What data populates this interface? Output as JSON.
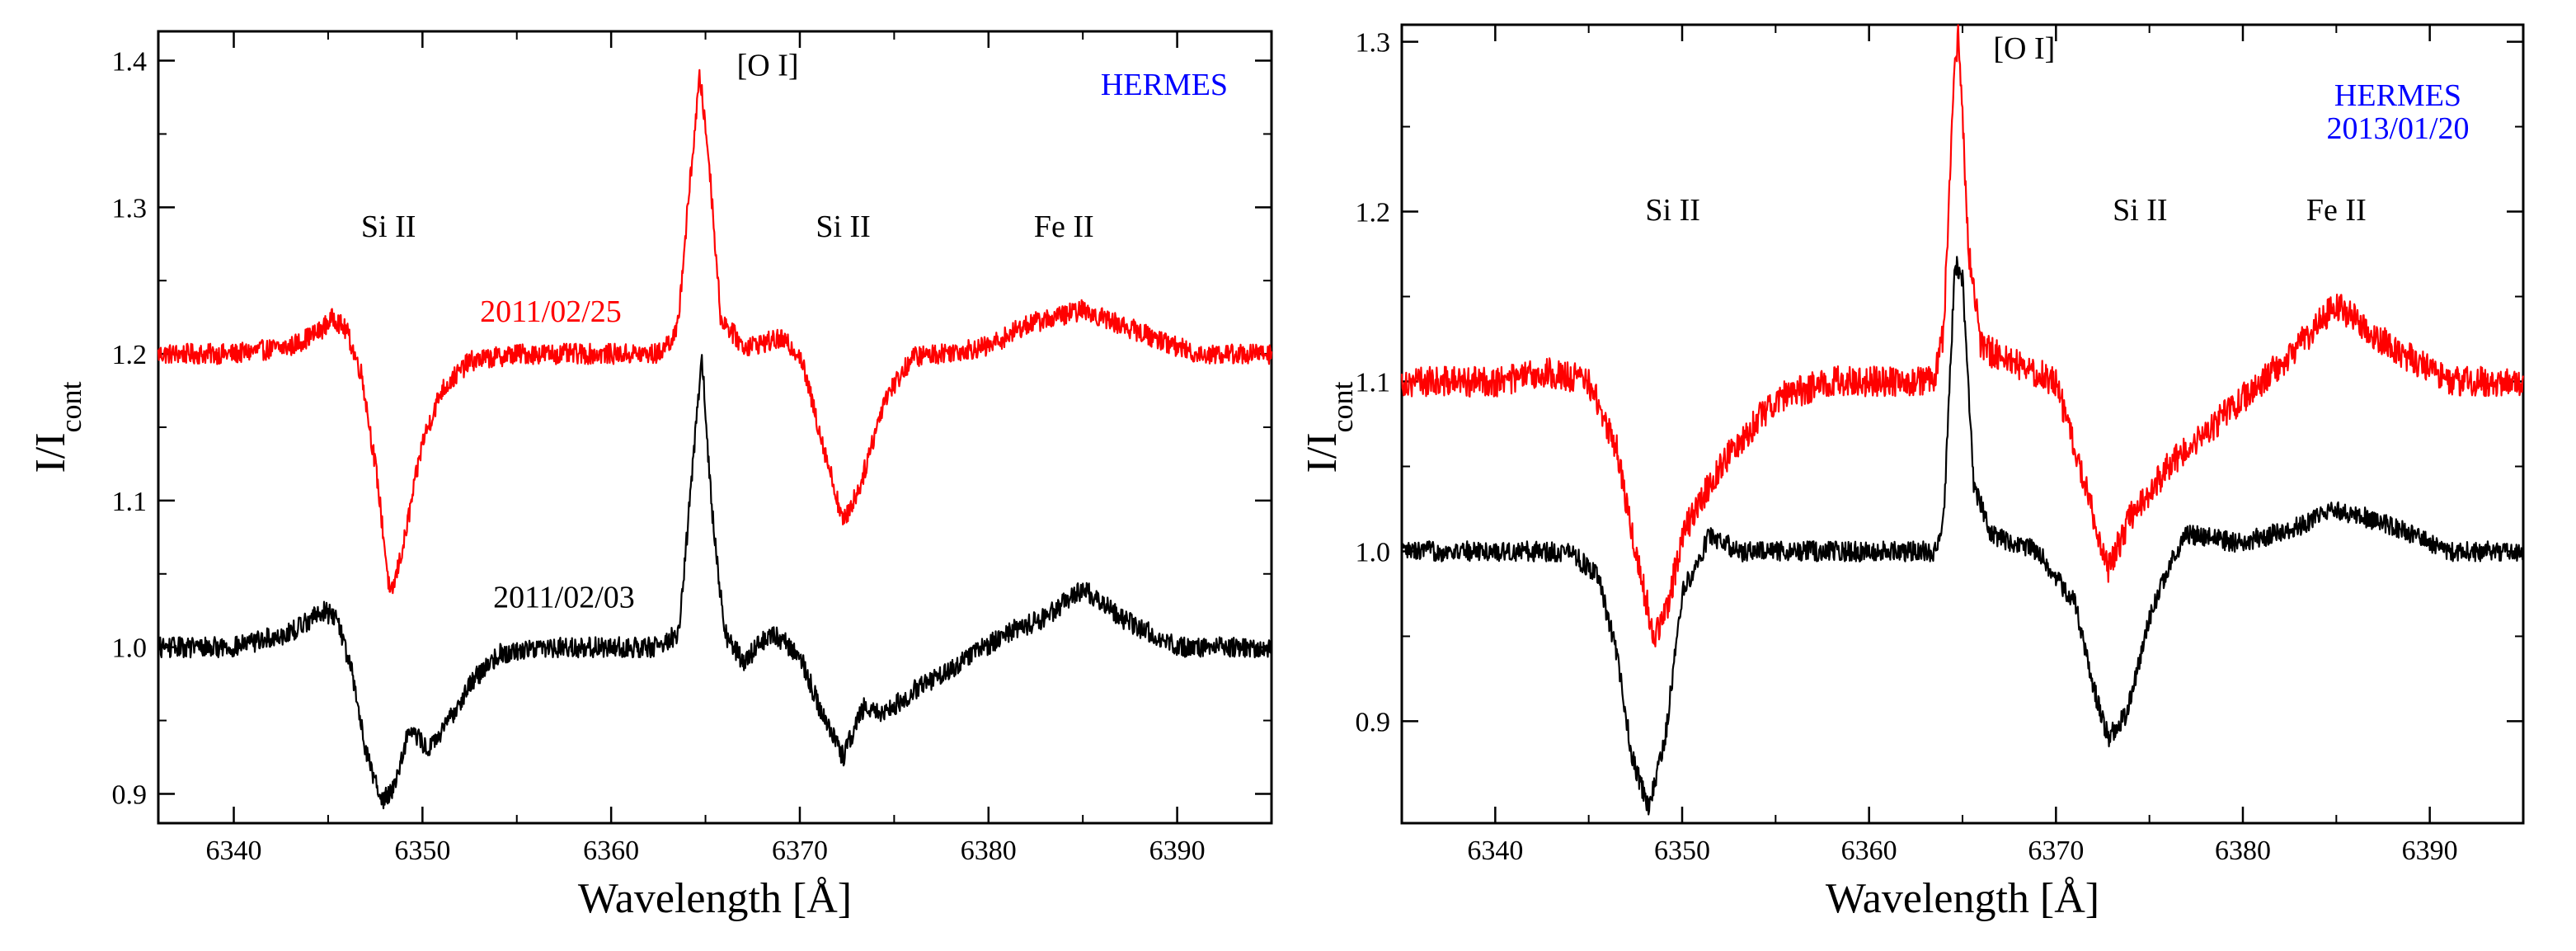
{
  "chart_data": [
    {
      "type": "line",
      "xlabel": "Wavelength [Å]",
      "ylabel": "I/I",
      "ylabel_sub": "cont",
      "xlim": [
        6336,
        6395
      ],
      "ylim": [
        0.88,
        1.42
      ],
      "xticks": [
        6340,
        6350,
        6360,
        6370,
        6380,
        6390
      ],
      "yticks": [
        "0.9",
        "1.0",
        "1.1",
        "1.2",
        "1.3",
        "1.4"
      ],
      "yticks_values": [
        0.9,
        1.0,
        1.1,
        1.2,
        1.3,
        1.4
      ],
      "instrument_label": "HERMES",
      "instrument_color": "#0000ff",
      "annotations": [
        {
          "text": "Si II",
          "x": 6348.2,
          "y": 1.28
        },
        {
          "text": "[O I]",
          "x": 6368.3,
          "y": 1.39
        },
        {
          "text": "Si II",
          "x": 6372.3,
          "y": 1.28
        },
        {
          "text": "Fe II",
          "x": 6384.0,
          "y": 1.28
        }
      ],
      "series": [
        {
          "name": "2011/02/25",
          "color": "#ff0000",
          "label_pos": [
            6356.8,
            1.222
          ],
          "noise": 0.007,
          "points": [
            [
              6336,
              1.2
            ],
            [
              6340,
              1.2
            ],
            [
              6343,
              1.205
            ],
            [
              6344.5,
              1.215
            ],
            [
              6345.3,
              1.225
            ],
            [
              6346,
              1.215
            ],
            [
              6346.8,
              1.185
            ],
            [
              6347.6,
              1.115
            ],
            [
              6348.3,
              1.033
            ],
            [
              6349,
              1.07
            ],
            [
              6350,
              1.14
            ],
            [
              6351,
              1.175
            ],
            [
              6352.5,
              1.195
            ],
            [
              6355,
              1.2
            ],
            [
              6360,
              1.2
            ],
            [
              6362.5,
              1.2
            ],
            [
              6363.5,
              1.215
            ],
            [
              6364.2,
              1.32
            ],
            [
              6364.7,
              1.39
            ],
            [
              6365.2,
              1.33
            ],
            [
              6365.8,
              1.225
            ],
            [
              6367,
              1.205
            ],
            [
              6369,
              1.21
            ],
            [
              6370,
              1.2
            ],
            [
              6371.2,
              1.14
            ],
            [
              6372.3,
              1.085
            ],
            [
              6373.2,
              1.11
            ],
            [
              6374.5,
              1.17
            ],
            [
              6376,
              1.198
            ],
            [
              6380,
              1.205
            ],
            [
              6382,
              1.22
            ],
            [
              6385,
              1.23
            ],
            [
              6388,
              1.215
            ],
            [
              6391,
              1.2
            ],
            [
              6395,
              1.2
            ]
          ]
        },
        {
          "name": "2011/02/03",
          "color": "#000000",
          "label_pos": [
            6357.5,
            1.027
          ],
          "noise": 0.007,
          "points": [
            [
              6336,
              1.0
            ],
            [
              6340,
              1.0
            ],
            [
              6343,
              1.01
            ],
            [
              6344.7,
              1.025
            ],
            [
              6345.5,
              1.02
            ],
            [
              6346.3,
              0.98
            ],
            [
              6347,
              0.93
            ],
            [
              6347.8,
              0.895
            ],
            [
              6348.5,
              0.905
            ],
            [
              6349.3,
              0.945
            ],
            [
              6350.3,
              0.93
            ],
            [
              6351.2,
              0.945
            ],
            [
              6352.5,
              0.975
            ],
            [
              6354,
              0.995
            ],
            [
              6356,
              1.0
            ],
            [
              6362.5,
              1.0
            ],
            [
              6363.6,
              1.01
            ],
            [
              6364.3,
              1.12
            ],
            [
              6364.8,
              1.2
            ],
            [
              6365.3,
              1.1
            ],
            [
              6366,
              1.01
            ],
            [
              6367,
              0.99
            ],
            [
              6368.5,
              1.01
            ],
            [
              6370,
              0.995
            ],
            [
              6371,
              0.96
            ],
            [
              6372.3,
              0.925
            ],
            [
              6373.4,
              0.96
            ],
            [
              6374.5,
              0.955
            ],
            [
              6376,
              0.97
            ],
            [
              6378,
              0.985
            ],
            [
              6381,
              1.01
            ],
            [
              6383,
              1.02
            ],
            [
              6385,
              1.04
            ],
            [
              6387,
              1.02
            ],
            [
              6390,
              1.0
            ],
            [
              6395,
              1.0
            ]
          ]
        }
      ]
    },
    {
      "type": "line",
      "xlabel": "Wavelength [Å]",
      "ylabel": "I/I",
      "ylabel_sub": "cont",
      "xlim": [
        6335,
        6395
      ],
      "ylim": [
        0.84,
        1.31
      ],
      "xticks": [
        6340,
        6350,
        6360,
        6370,
        6380,
        6390
      ],
      "yticks": [
        "0.9",
        "1.0",
        "1.1",
        "1.2",
        "1.3"
      ],
      "yticks_values": [
        0.9,
        1.0,
        1.1,
        1.2,
        1.3
      ],
      "instrument_label": "HERMES",
      "date_label": "2013/01/20",
      "instrument_color": "#0000ff",
      "annotations": [
        {
          "text": "Si II",
          "x": 6349.5,
          "y": 1.195
        },
        {
          "text": "[O I]",
          "x": 6368.3,
          "y": 1.29
        },
        {
          "text": "Si II",
          "x": 6374.5,
          "y": 1.195
        },
        {
          "text": "Fe II",
          "x": 6385.0,
          "y": 1.195
        }
      ],
      "series": [
        {
          "name": "red",
          "color": "#ff0000",
          "noise": 0.009,
          "points": [
            [
              6335,
              1.1
            ],
            [
              6340,
              1.1
            ],
            [
              6343,
              1.105
            ],
            [
              6345,
              1.1
            ],
            [
              6346.5,
              1.06
            ],
            [
              6347.5,
              1.0
            ],
            [
              6348.5,
              0.95
            ],
            [
              6349.2,
              0.965
            ],
            [
              6350,
              1.01
            ],
            [
              6352,
              1.05
            ],
            [
              6355,
              1.09
            ],
            [
              6358,
              1.1
            ],
            [
              6363.5,
              1.1
            ],
            [
              6364,
              1.13
            ],
            [
              6364.5,
              1.27
            ],
            [
              6364.8,
              1.305
            ],
            [
              6365.3,
              1.18
            ],
            [
              6366,
              1.12
            ],
            [
              6368,
              1.11
            ],
            [
              6370,
              1.1
            ],
            [
              6371.5,
              1.04
            ],
            [
              6372.8,
              0.99
            ],
            [
              6374,
              1.02
            ],
            [
              6376,
              1.05
            ],
            [
              6379,
              1.08
            ],
            [
              6382,
              1.11
            ],
            [
              6385,
              1.145
            ],
            [
              6388,
              1.12
            ],
            [
              6391,
              1.1
            ],
            [
              6395,
              1.1
            ]
          ]
        },
        {
          "name": "black",
          "color": "#000000",
          "noise": 0.006,
          "points": [
            [
              6335,
              1.0
            ],
            [
              6340,
              1.0
            ],
            [
              6344,
              1.0
            ],
            [
              6345.5,
              0.985
            ],
            [
              6346.5,
              0.94
            ],
            [
              6347.3,
              0.88
            ],
            [
              6348.2,
              0.848
            ],
            [
              6349.1,
              0.89
            ],
            [
              6350,
              0.975
            ],
            [
              6351.5,
              1.01
            ],
            [
              6353,
              1.0
            ],
            [
              6360,
              1.0
            ],
            [
              6363.5,
              1.0
            ],
            [
              6364,
              1.02
            ],
            [
              6364.6,
              1.17
            ],
            [
              6365,
              1.16
            ],
            [
              6365.6,
              1.04
            ],
            [
              6366.5,
              1.01
            ],
            [
              6369,
              1.0
            ],
            [
              6371,
              0.97
            ],
            [
              6372,
              0.92
            ],
            [
              6372.8,
              0.89
            ],
            [
              6373.8,
              0.905
            ],
            [
              6375,
              0.96
            ],
            [
              6376,
              0.99
            ],
            [
              6377,
              1.01
            ],
            [
              6380,
              1.005
            ],
            [
              6383,
              1.015
            ],
            [
              6385,
              1.025
            ],
            [
              6388,
              1.015
            ],
            [
              6391,
              1.0
            ],
            [
              6395,
              1.0
            ]
          ]
        }
      ]
    }
  ]
}
